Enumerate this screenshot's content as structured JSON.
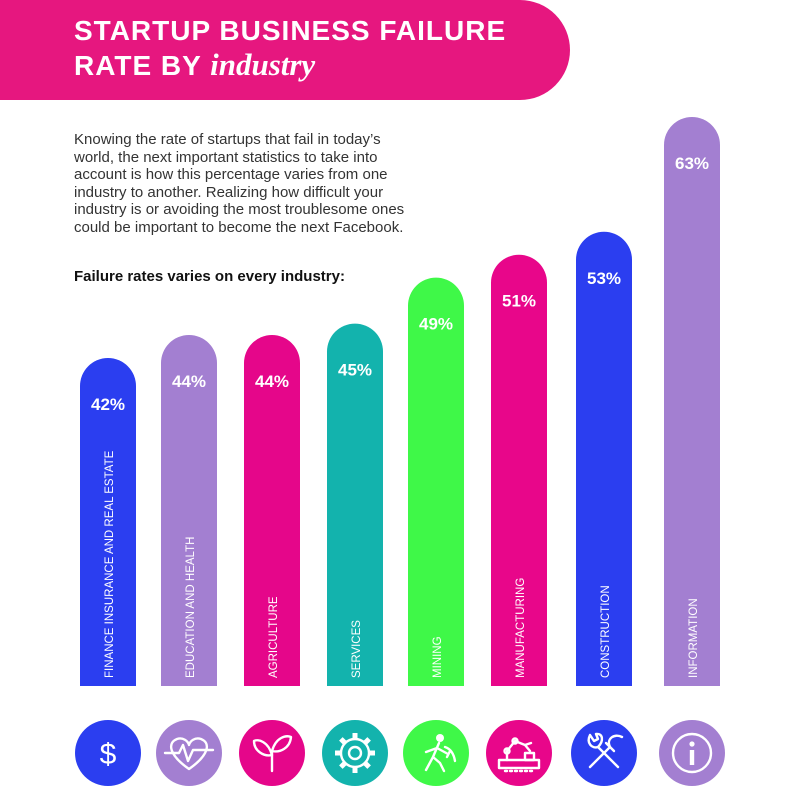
{
  "header": {
    "title_line1": "STARTUP BUSINESS FAILURE",
    "title_line2a": "RATE BY ",
    "title_line2b": "industry"
  },
  "intro": {
    "text": "Knowing the rate of startups that fail in today’s world, the next important statistics to take into account is how this percentage varies from one industry to another. Realizing how difficult your industry is or avoiding the most troublesome ones could be important to become the next Facebook.",
    "lead": "Failure rates varies on every industry:"
  },
  "chart_data": {
    "type": "bar",
    "categories": [
      "FINANCE INSURANCE AND REAL ESTATE",
      "EDUCATION AND HEALTH",
      "AGRICULTURE",
      "SERVICES",
      "MINING",
      "MANUFACTURING",
      "CONSTRUCTION",
      "INFORMATION"
    ],
    "values": [
      42,
      44,
      44,
      45,
      49,
      51,
      53,
      63
    ],
    "value_labels": [
      "42%",
      "44%",
      "44%",
      "45%",
      "49%",
      "51%",
      "53%",
      "63%"
    ],
    "colors": [
      "#2b3ef0",
      "#a37fd1",
      "#e5068a",
      "#13b3ad",
      "#3ff848",
      "#e8068a",
      "#2b3ef0",
      "#a37fd1"
    ],
    "icons": [
      "dollar-icon",
      "heartbeat-icon",
      "sprout-icon",
      "gear-icon",
      "miner-icon",
      "factory-robot-icon",
      "tools-icon",
      "info-icon"
    ]
  }
}
